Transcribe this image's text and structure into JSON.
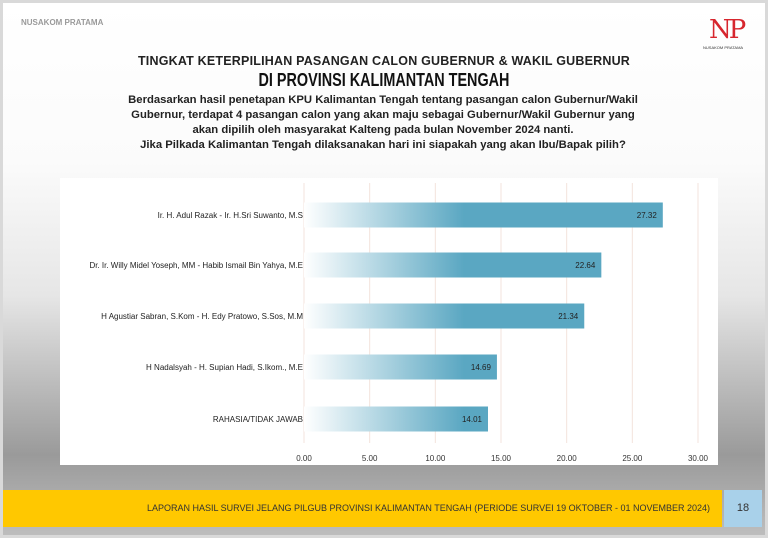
{
  "brand": "NUSAKOM PRATAMA",
  "logo": {
    "mark": "NP",
    "text": "NUSAKOM PRATAMA"
  },
  "title_line1": "TINGKAT KETERPILIHAN PASANGAN CALON GUBERNUR & WAKIL GUBERNUR",
  "title_line2": "DI PROVINSI KALIMANTAN TENGAH",
  "description": [
    "Berdasarkan hasil penetapan KPU Kalimantan Tengah tentang pasangan calon Gubernur/Wakil",
    "Gubernur, terdapat 4 pasangan calon yang akan maju sebagai Gubernur/Wakil Gubernur yang",
    "akan dipilih oleh masyarakat Kalteng pada bulan November 2024 nanti.",
    "Jika Pilkada Kalimantan Tengah dilaksanakan hari ini siapakah yang akan Ibu/Bapak pilih?"
  ],
  "chart_data": {
    "type": "bar",
    "orientation": "horizontal",
    "categories": [
      "Ir. H. Adul Razak - Ir. H.Sri Suwanto, M.S",
      "Dr. Ir. Willy Midel Yoseph, MM - Habib Ismail Bin Yahya, M.E",
      "H Agustiar Sabran, S.Kom - H. Edy Pratowo, S.Sos, M.M",
      "H Nadalsyah - H. Supian Hadi, S.Ikom., M.E",
      "RAHASIA/TIDAK JAWAB"
    ],
    "values": [
      27.32,
      22.64,
      21.34,
      14.69,
      14.01
    ],
    "value_labels": [
      "27.32",
      "22.64",
      "21.34",
      "14.69",
      "14.01"
    ],
    "xlim": [
      0,
      30
    ],
    "ticks": [
      "0.00",
      "5.00",
      "10.00",
      "15.00",
      "20.00",
      "25.00",
      "30.00"
    ],
    "grid": true,
    "bar_color": "#5aa7c2",
    "grid_color": "#f3e3dc"
  },
  "footer": {
    "text": "LAPORAN HASIL SURVEI JELANG PILGUB PROVINSI KALIMANTAN TENGAH (PERIODE SURVEI  19 OKTOBER - 01 NOVEMBER 2024)",
    "page": "18"
  }
}
